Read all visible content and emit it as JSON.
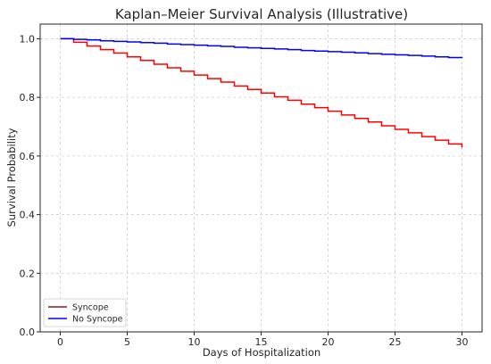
{
  "chart_data": {
    "type": "line",
    "title": "Kaplan–Meier Survival Analysis (Illustrative)",
    "xlabel": "Days of Hospitalization",
    "ylabel": "Survival Probability",
    "xlim": [
      -1.5,
      31.5
    ],
    "ylim": [
      0,
      1.05
    ],
    "xticks": [
      0,
      5,
      10,
      15,
      20,
      25,
      30
    ],
    "xtick_labels": [
      "0",
      "5",
      "10",
      "15",
      "20",
      "25",
      "30"
    ],
    "yticks": [
      0.0,
      0.2,
      0.4,
      0.6,
      0.8,
      1.0
    ],
    "ytick_labels": [
      "0.0",
      "0.2",
      "0.4",
      "0.6",
      "0.8",
      "1.0"
    ],
    "grid": true,
    "legend_position": "lower-left",
    "series": [
      {
        "name": "Syncope",
        "color": "#ff0000",
        "legend_color": "#8b1a1a",
        "step": "post",
        "x": [
          0,
          1,
          2,
          3,
          4,
          5,
          6,
          7,
          8,
          9,
          10,
          11,
          12,
          13,
          14,
          15,
          16,
          17,
          18,
          19,
          20,
          21,
          22,
          23,
          24,
          25,
          26,
          27,
          28,
          29,
          30
        ],
        "y": [
          1.0,
          0.988,
          0.975,
          0.963,
          0.951,
          0.938,
          0.926,
          0.913,
          0.901,
          0.889,
          0.876,
          0.864,
          0.852,
          0.839,
          0.827,
          0.815,
          0.802,
          0.79,
          0.777,
          0.765,
          0.753,
          0.74,
          0.728,
          0.716,
          0.703,
          0.691,
          0.679,
          0.666,
          0.654,
          0.641,
          0.629
        ]
      },
      {
        "name": "No Syncope",
        "color": "#0000ff",
        "legend_color": "#0000ff",
        "step": "post",
        "x": [
          0,
          1,
          2,
          3,
          4,
          5,
          6,
          7,
          8,
          9,
          10,
          11,
          12,
          13,
          14,
          15,
          16,
          17,
          18,
          19,
          20,
          21,
          22,
          23,
          24,
          25,
          26,
          27,
          28,
          29,
          30
        ],
        "y": [
          1.0,
          0.998,
          0.996,
          0.993,
          0.991,
          0.989,
          0.987,
          0.985,
          0.982,
          0.98,
          0.978,
          0.976,
          0.974,
          0.971,
          0.969,
          0.967,
          0.965,
          0.963,
          0.96,
          0.958,
          0.956,
          0.954,
          0.952,
          0.949,
          0.947,
          0.945,
          0.943,
          0.941,
          0.938,
          0.936,
          0.934
        ]
      }
    ]
  }
}
